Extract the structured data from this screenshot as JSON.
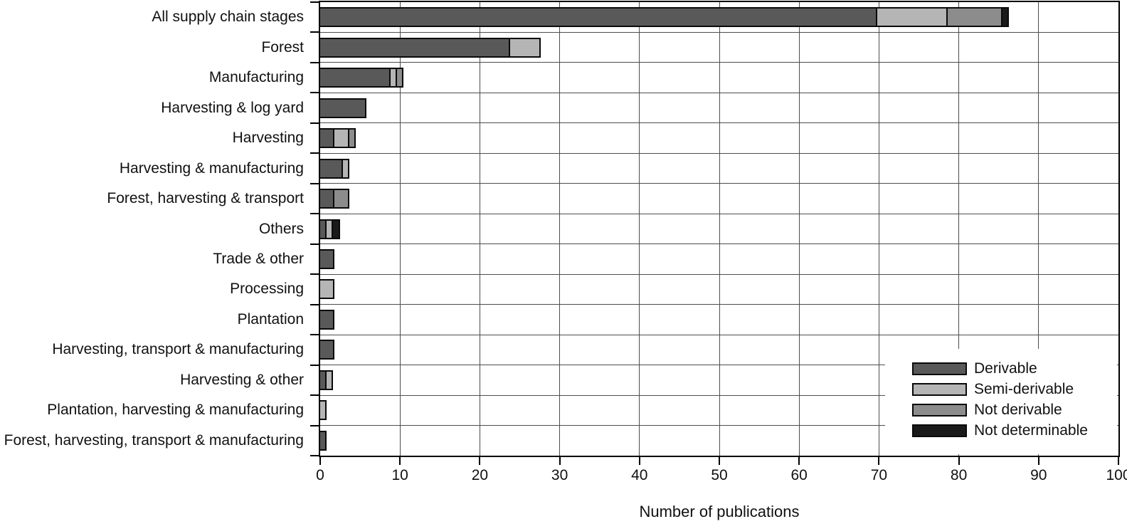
{
  "figure": {
    "xlabel": "Number of publications"
  },
  "legend": {
    "items": [
      {
        "label": "Derivable",
        "color": "#595959"
      },
      {
        "label": "Semi-derivable",
        "color": "#b5b5b5"
      },
      {
        "label": "Not derivable",
        "color": "#8c8c8c"
      },
      {
        "label": "Not determinable",
        "color": "#1a1a1a"
      }
    ]
  },
  "chart_data": {
    "type": "bar",
    "orientation": "horizontal",
    "stacked": true,
    "title": "",
    "xlabel": "Number of publications",
    "ylabel": "",
    "xlim": [
      0,
      100
    ],
    "xticks": [
      0,
      10,
      20,
      30,
      40,
      50,
      60,
      70,
      80,
      90,
      100
    ],
    "grid": true,
    "legend_position": "bottom-right",
    "categories": [
      "All supply chain stages",
      "Forest",
      "Manufacturing",
      "Harvesting & log yard",
      "Harvesting",
      "Harvesting & manufacturing",
      "Forest, harvesting & transport",
      "Others",
      "Trade & other",
      "Processing",
      "Plantation",
      "Harvesting, transport & manufacturing",
      "Harvesting & other",
      "Plantation, harvesting & manufacturing",
      "Forest, harvesting, transport & manufacturing"
    ],
    "series": [
      {
        "name": "Derivable",
        "color": "#595959",
        "values": [
          70,
          24,
          9,
          6,
          2,
          3,
          2,
          1,
          2,
          0,
          2,
          2,
          1,
          0,
          1
        ]
      },
      {
        "name": "Semi-derivable",
        "color": "#b5b5b5",
        "values": [
          9,
          4,
          1,
          0,
          2,
          1,
          0,
          1,
          0,
          2,
          0,
          0,
          1,
          1,
          0
        ]
      },
      {
        "name": "Not derivable",
        "color": "#8c8c8c",
        "values": [
          7,
          0,
          1,
          0,
          1,
          0,
          2,
          0,
          0,
          0,
          0,
          0,
          0,
          0,
          0
        ]
      },
      {
        "name": "Not determinable",
        "color": "#1a1a1a",
        "values": [
          1,
          0,
          0,
          0,
          0,
          0,
          0,
          1,
          0,
          0,
          0,
          0,
          0,
          0,
          0
        ]
      }
    ]
  }
}
